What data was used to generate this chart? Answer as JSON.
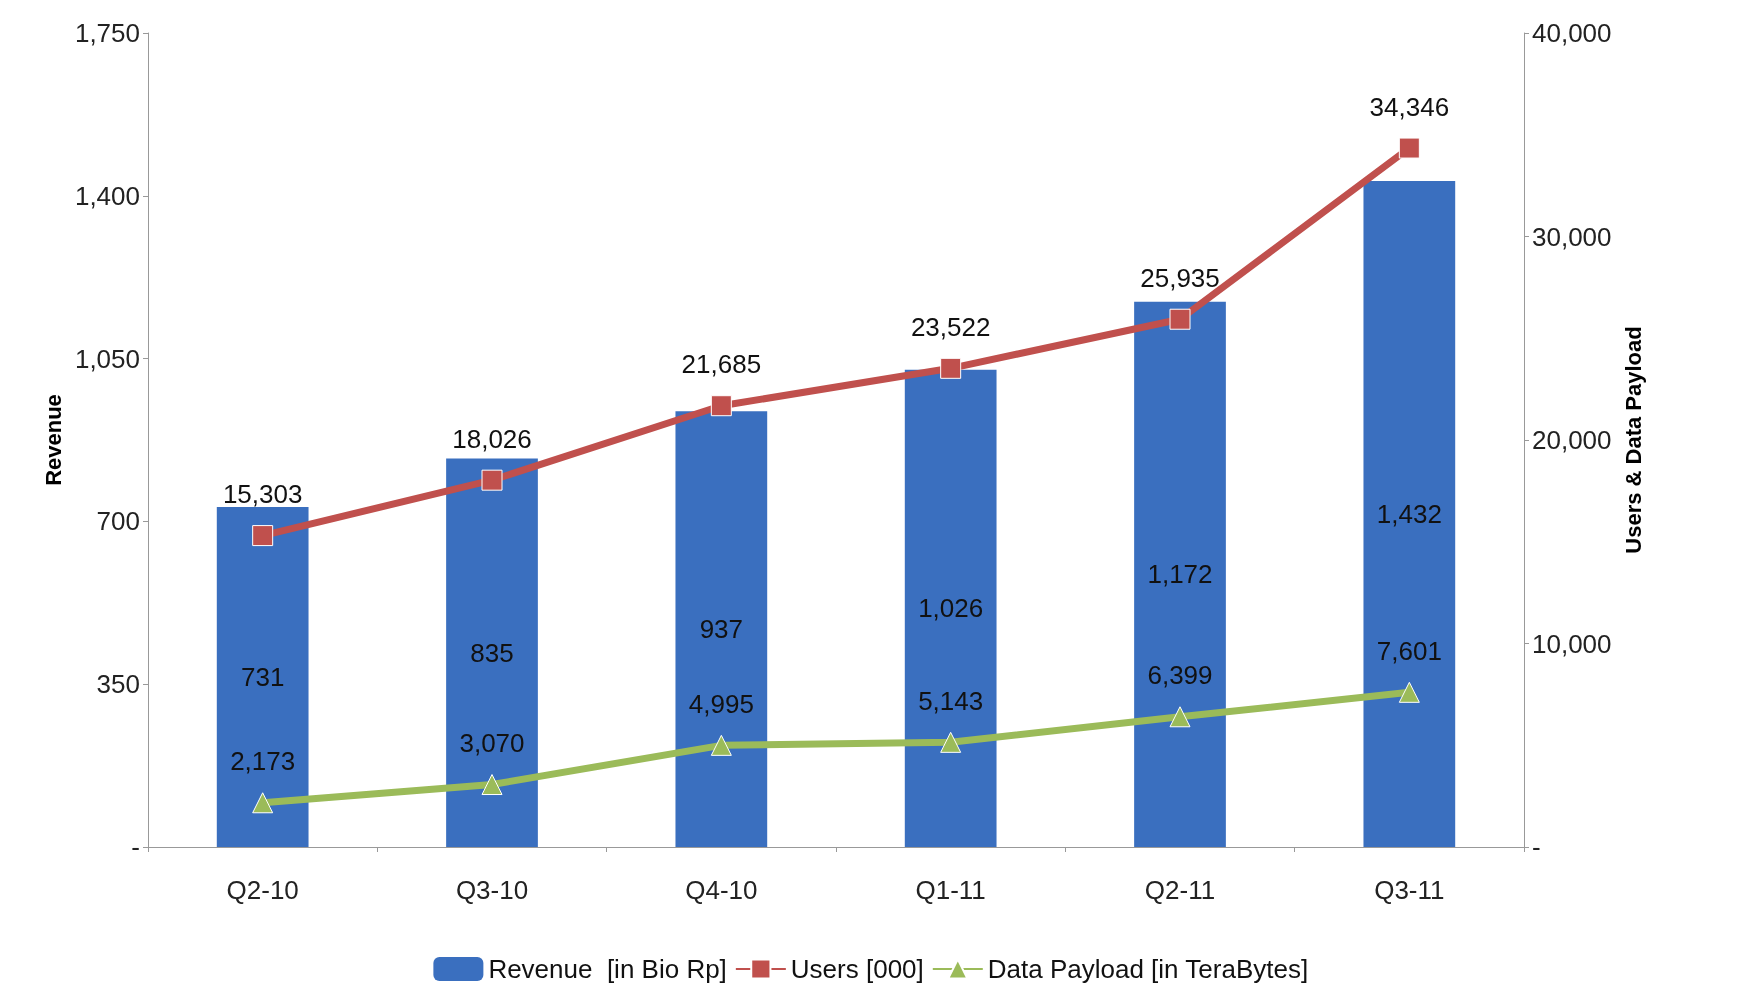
{
  "chart_data": {
    "type": "bar",
    "ylabel": "Revenue",
    "y2label": "Users & Data Payload",
    "categories": [
      "Q2-10",
      "Q3-10",
      "Q4-10",
      "Q1-11",
      "Q2-11",
      "Q3-11"
    ],
    "series": [
      {
        "name": "Revenue  [in Bio Rp]",
        "color": "#3a6fbf",
        "values": [
          731,
          835,
          937,
          1026,
          1172,
          1432
        ],
        "value_labels": [
          "731",
          "835",
          "937",
          "1,026",
          "1,172",
          "1,432"
        ]
      },
      {
        "name": "Users [000]",
        "type": "line",
        "axis": "y2",
        "marker": "square",
        "color": "#c0504d",
        "values": [
          15303,
          18026,
          21685,
          23522,
          25935,
          34346
        ],
        "value_labels": [
          "15,303",
          "18,026",
          "21,685",
          "23,522",
          "25,935",
          "34,346"
        ]
      },
      {
        "name": "Data Payload [in TeraBytes]",
        "type": "line",
        "axis": "y2",
        "marker": "triangle",
        "color": "#9bbb59",
        "values": [
          2173,
          3070,
          4995,
          5143,
          6399,
          7601
        ],
        "value_labels": [
          "2,173",
          "3,070",
          "4,995",
          "5,143",
          "6,399",
          "7,601"
        ]
      }
    ],
    "ylim": [
      0,
      1750
    ],
    "yticks": [
      {
        "value": 0,
        "label": "-"
      },
      {
        "value": 350,
        "label": "350"
      },
      {
        "value": 700,
        "label": "700"
      },
      {
        "value": 1050,
        "label": "1,050"
      },
      {
        "value": 1400,
        "label": "1,400"
      },
      {
        "value": 1750,
        "label": "1,750"
      }
    ],
    "y2lim": [
      0,
      40000
    ],
    "y2ticks": [
      {
        "value": 0,
        "label": "-"
      },
      {
        "value": 10000,
        "label": "10,000"
      },
      {
        "value": 20000,
        "label": "20,000"
      },
      {
        "value": 30000,
        "label": "30,000"
      },
      {
        "value": 40000,
        "label": "40,000"
      }
    ],
    "grid": false,
    "legend": "bottom"
  }
}
